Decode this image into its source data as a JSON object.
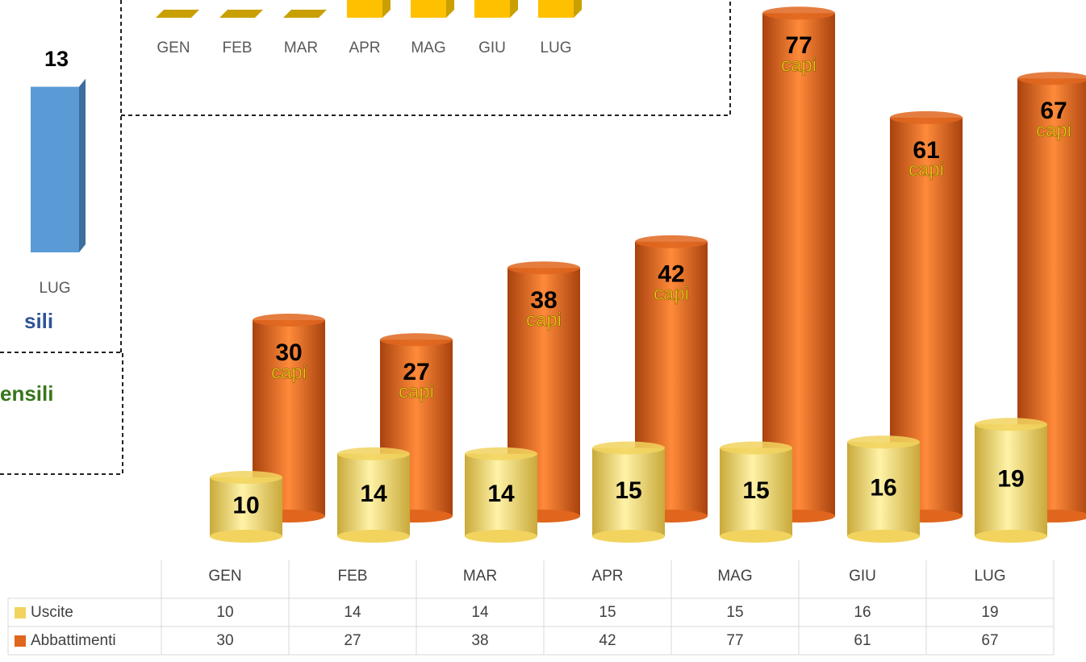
{
  "chart_data": [
    {
      "type": "cylinder",
      "categories": [
        "GEN",
        "FEB",
        "MAR",
        "APR",
        "MAG",
        "GIU",
        "LUG"
      ],
      "series": [
        {
          "name": "Uscite",
          "color": "#f2d35e",
          "values": [
            10,
            14,
            14,
            15,
            15,
            16,
            19
          ]
        },
        {
          "name": "Abbattimenti",
          "color": "#e0661e",
          "values": [
            30,
            27,
            38,
            42,
            77,
            61,
            67
          ],
          "value_note": "capi"
        }
      ],
      "data_table": true
    },
    {
      "type": "bar",
      "categories": [
        "GEN",
        "FEB",
        "MAR",
        "APR",
        "MAG",
        "GIU",
        "LUG"
      ],
      "color": "#ffc000"
    },
    {
      "type": "bar",
      "categories": [
        "LUG"
      ],
      "values": [
        13
      ],
      "color": "#5b9bd5",
      "texts": [
        "sili",
        "ensili"
      ]
    }
  ]
}
